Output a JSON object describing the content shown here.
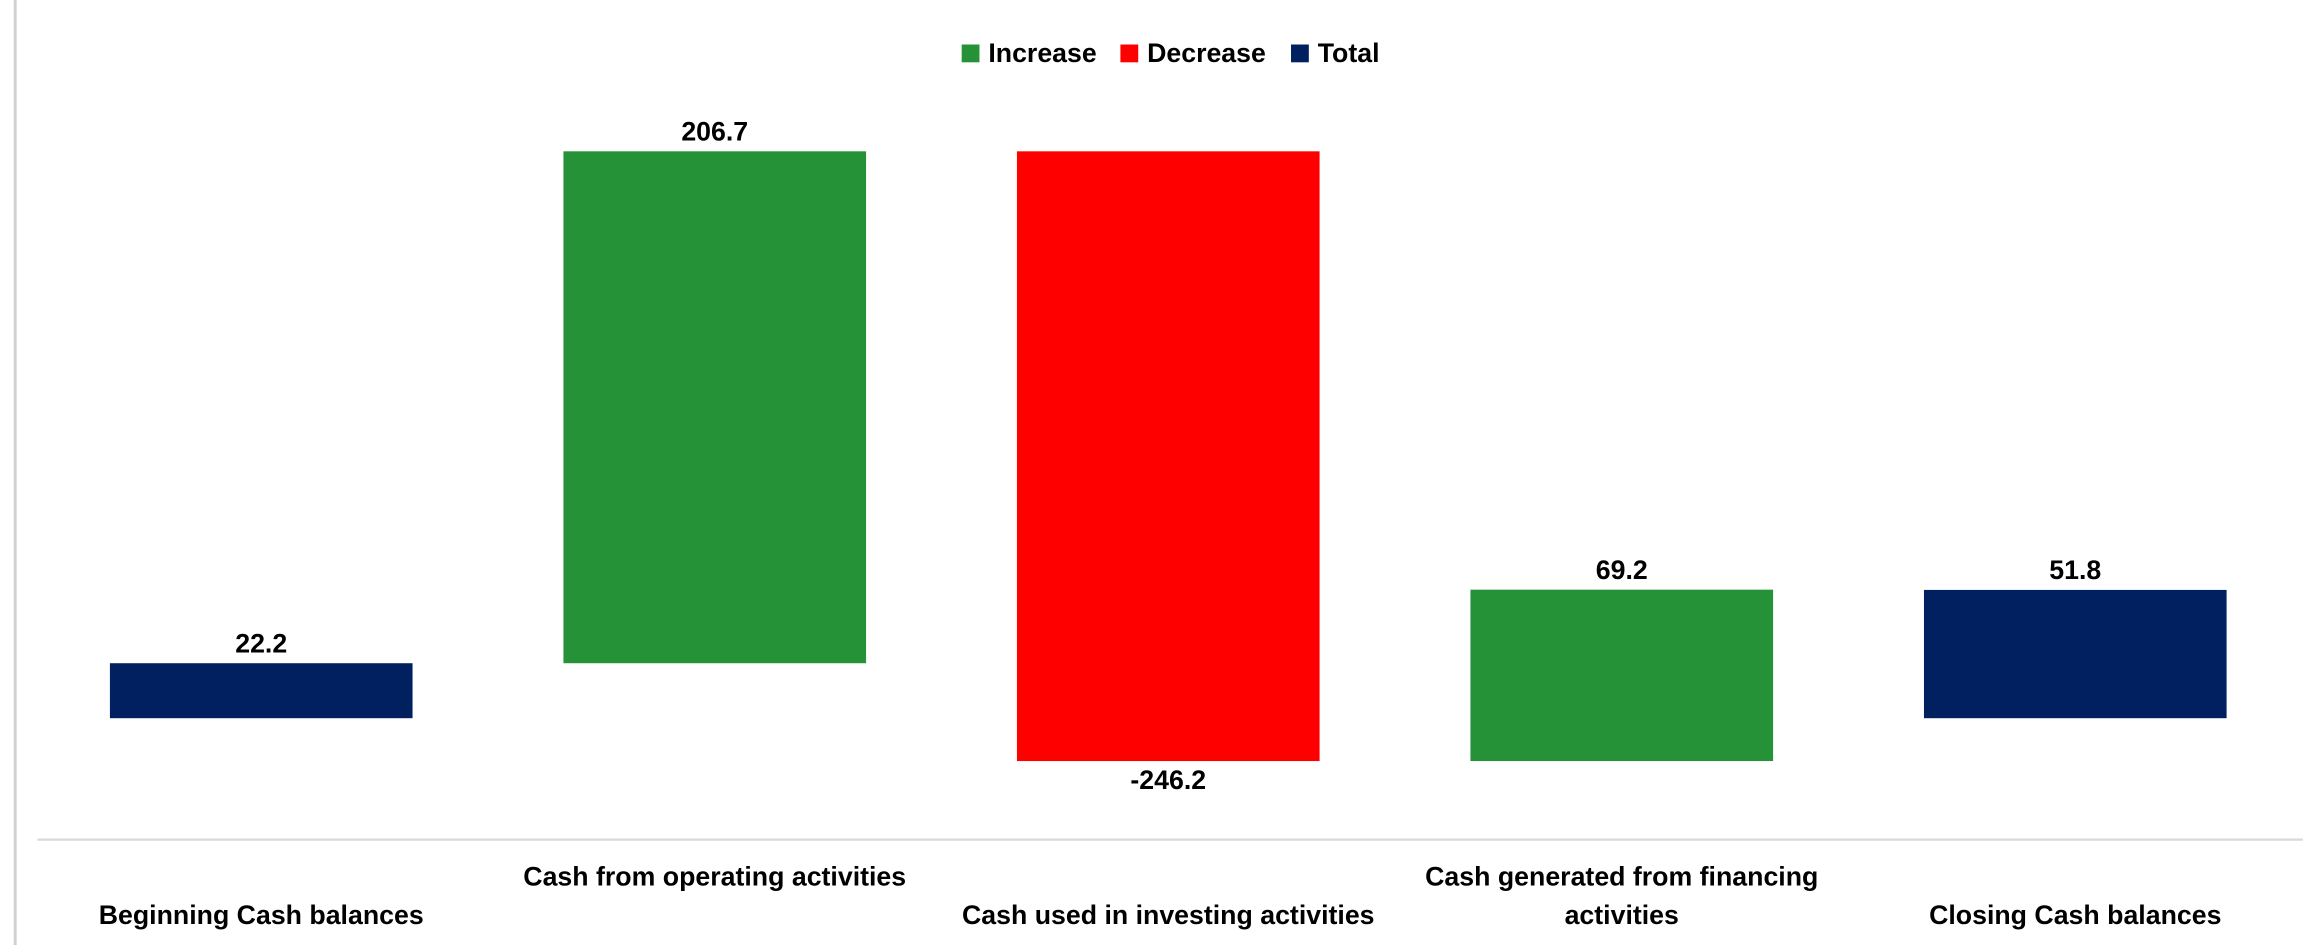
{
  "chart_data": {
    "type": "waterfall",
    "categories": [
      "Beginning Cash balances",
      "Cash from operating activities",
      "Cash used in investing activities",
      "Cash generated from financing activities",
      "Closing Cash balances"
    ],
    "values": [
      22.2,
      206.7,
      -246.2,
      69.2,
      51.8
    ],
    "series": [
      {
        "name": "Increase",
        "color": "#259238"
      },
      {
        "name": "Decrease",
        "color": "#ff0000"
      },
      {
        "name": "Total",
        "color": "#002060"
      }
    ],
    "bar_series": [
      2,
      0,
      1,
      0,
      2
    ],
    "legend": "top"
  }
}
